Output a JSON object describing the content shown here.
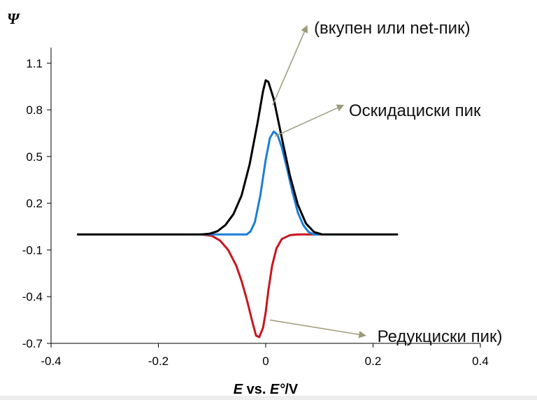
{
  "chart_data": {
    "type": "line",
    "ylabel": "Ψ",
    "xlabel": {
      "var1": "E",
      "mid": " vs. ",
      "var2": "E°",
      "unit": "/V"
    },
    "xlim": [
      -0.4,
      0.4
    ],
    "ylim": [
      -0.7,
      1.2
    ],
    "x_ticks": [
      -0.4,
      -0.2,
      0,
      0.2,
      0.4
    ],
    "x_tick_labels": [
      "-0.4",
      "-0.2",
      "0",
      "0.2",
      "0.4"
    ],
    "y_ticks": [
      1.1,
      0.8,
      0.5,
      0.2,
      -0.1,
      -0.4,
      -0.7
    ],
    "y_tick_labels": [
      "1.1",
      "0.8",
      "0.5",
      "0.2",
      "-0.1",
      "-0.4",
      "-0.7"
    ],
    "grid": false,
    "series": [
      {
        "color": "#000000",
        "points": [
          [
            -0.35,
            0
          ],
          [
            -0.12,
            0
          ],
          [
            -0.105,
            0.004
          ],
          [
            -0.09,
            0.02
          ],
          [
            -0.075,
            0.06
          ],
          [
            -0.06,
            0.13
          ],
          [
            -0.045,
            0.25
          ],
          [
            -0.03,
            0.45
          ],
          [
            -0.015,
            0.72
          ],
          [
            -0.005,
            0.92
          ],
          [
            0.0,
            0.99
          ],
          [
            0.005,
            0.98
          ],
          [
            0.015,
            0.87
          ],
          [
            0.03,
            0.62
          ],
          [
            0.045,
            0.38
          ],
          [
            0.06,
            0.19
          ],
          [
            0.075,
            0.07
          ],
          [
            0.09,
            0.015
          ],
          [
            0.105,
            0
          ],
          [
            0.245,
            0
          ]
        ]
      },
      {
        "color": "#1a7fd4",
        "points": [
          [
            -0.11,
            0
          ],
          [
            -0.035,
            0
          ],
          [
            -0.028,
            0.02
          ],
          [
            -0.02,
            0.08
          ],
          [
            -0.01,
            0.25
          ],
          [
            0.0,
            0.48
          ],
          [
            0.008,
            0.62
          ],
          [
            0.015,
            0.66
          ],
          [
            0.022,
            0.64
          ],
          [
            0.03,
            0.56
          ],
          [
            0.04,
            0.42
          ],
          [
            0.05,
            0.27
          ],
          [
            0.06,
            0.14
          ],
          [
            0.07,
            0.06
          ],
          [
            0.08,
            0.015
          ],
          [
            0.09,
            0
          ],
          [
            0.1,
            0
          ]
        ]
      },
      {
        "color": "#c8161d",
        "points": [
          [
            -0.12,
            0
          ],
          [
            -0.1,
            -0.01
          ],
          [
            -0.085,
            -0.04
          ],
          [
            -0.07,
            -0.1
          ],
          [
            -0.055,
            -0.2
          ],
          [
            -0.045,
            -0.3
          ],
          [
            -0.035,
            -0.42
          ],
          [
            -0.025,
            -0.56
          ],
          [
            -0.018,
            -0.65
          ],
          [
            -0.012,
            -0.66
          ],
          [
            -0.005,
            -0.6
          ],
          [
            0.0,
            -0.5
          ],
          [
            0.005,
            -0.36
          ],
          [
            0.012,
            -0.2
          ],
          [
            0.02,
            -0.09
          ],
          [
            0.03,
            -0.03
          ],
          [
            0.045,
            -0.005
          ],
          [
            0.06,
            0
          ],
          [
            0.105,
            0
          ]
        ]
      }
    ],
    "annotations": [
      {
        "text": "(вкупен или  net-пик)",
        "from": [
          0.013,
          0.83
        ],
        "to": [
          0.077,
          1.34
        ],
        "label_at": [
          0.09,
          1.29
        ],
        "arrow_color": "#9c9a78"
      },
      {
        "text": "Оскидациски пик",
        "from": [
          0.017,
          0.63
        ],
        "to": [
          0.145,
          0.83
        ],
        "label_at": [
          0.155,
          0.76
        ],
        "arrow_color": "#9c9a78"
      },
      {
        "text": "Редукциски пик)",
        "from": [
          0.008,
          -0.55
        ],
        "to": [
          0.186,
          -0.65
        ],
        "label_at": [
          0.208,
          -0.69
        ],
        "arrow_color": "#9c9a78"
      }
    ]
  }
}
